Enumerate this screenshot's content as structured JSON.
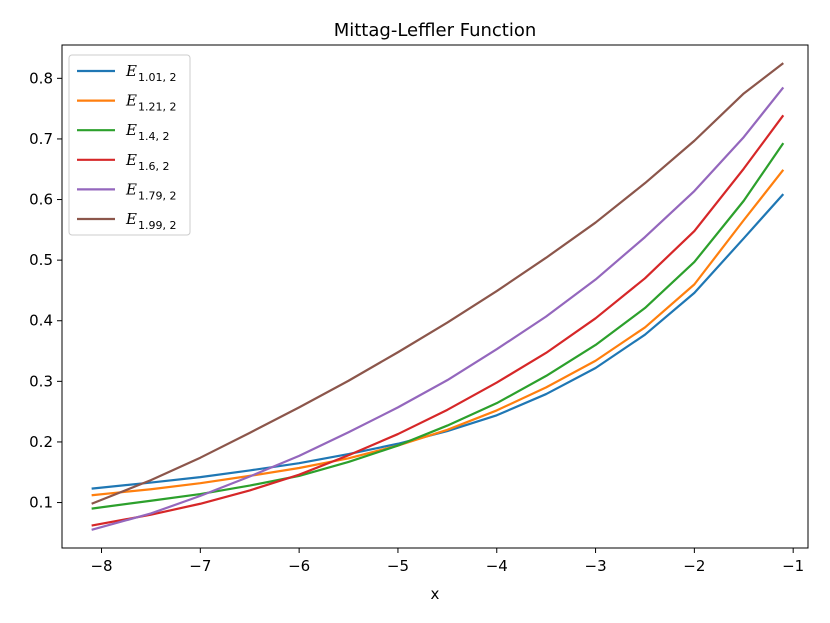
{
  "chart_data": {
    "type": "line",
    "title": "Mittag-Leffler Function",
    "xlabel": "x",
    "ylabel": "",
    "xlim": [
      -8.4,
      -0.85
    ],
    "ylim": [
      0.025,
      0.855
    ],
    "xticks": [
      -8,
      -7,
      -6,
      -5,
      -4,
      -3,
      -2,
      -1
    ],
    "xtick_labels": [
      "−8",
      "−7",
      "−6",
      "−5",
      "−4",
      "−3",
      "−2",
      "−1"
    ],
    "yticks": [
      0.1,
      0.2,
      0.3,
      0.4,
      0.5,
      0.6,
      0.7,
      0.8
    ],
    "ytick_labels": [
      "0.1",
      "0.2",
      "0.3",
      "0.4",
      "0.5",
      "0.6",
      "0.7",
      "0.8"
    ],
    "grid": false,
    "legend_position": "top-left",
    "x": [
      -8.1,
      -7.5,
      -7.0,
      -6.5,
      -6.0,
      -5.5,
      -5.0,
      -4.5,
      -4.0,
      -3.5,
      -3.0,
      -2.5,
      -2.0,
      -1.5,
      -1.1
    ],
    "series": [
      {
        "name": "E",
        "sub": "1.01, 2",
        "color": "#1f77b4",
        "values": [
          0.123,
          0.133,
          0.142,
          0.153,
          0.165,
          0.18,
          0.197,
          0.218,
          0.244,
          0.279,
          0.322,
          0.377,
          0.446,
          0.536,
          0.609
        ]
      },
      {
        "name": "E",
        "sub": "1.21, 2",
        "color": "#ff7f0e",
        "values": [
          0.112,
          0.122,
          0.132,
          0.144,
          0.157,
          0.173,
          0.194,
          0.22,
          0.252,
          0.29,
          0.334,
          0.389,
          0.46,
          0.566,
          0.649
        ]
      },
      {
        "name": "E",
        "sub": "1.4, 2",
        "color": "#2ca02c",
        "values": [
          0.09,
          0.103,
          0.114,
          0.128,
          0.144,
          0.167,
          0.194,
          0.227,
          0.264,
          0.309,
          0.36,
          0.421,
          0.497,
          0.598,
          0.693
        ]
      },
      {
        "name": "E",
        "sub": "1.6, 2",
        "color": "#d62728",
        "values": [
          0.062,
          0.08,
          0.098,
          0.12,
          0.146,
          0.178,
          0.213,
          0.253,
          0.298,
          0.347,
          0.404,
          0.47,
          0.548,
          0.651,
          0.739
        ]
      },
      {
        "name": "E",
        "sub": "1.79, 2",
        "color": "#9467bd",
        "values": [
          0.055,
          0.082,
          0.111,
          0.143,
          0.177,
          0.216,
          0.257,
          0.302,
          0.353,
          0.407,
          0.468,
          0.538,
          0.614,
          0.703,
          0.785
        ]
      },
      {
        "name": "E",
        "sub": "1.99, 2",
        "color": "#8c564b",
        "values": [
          0.098,
          0.137,
          0.174,
          0.215,
          0.257,
          0.301,
          0.348,
          0.397,
          0.449,
          0.504,
          0.562,
          0.627,
          0.697,
          0.775,
          0.825
        ]
      }
    ]
  }
}
